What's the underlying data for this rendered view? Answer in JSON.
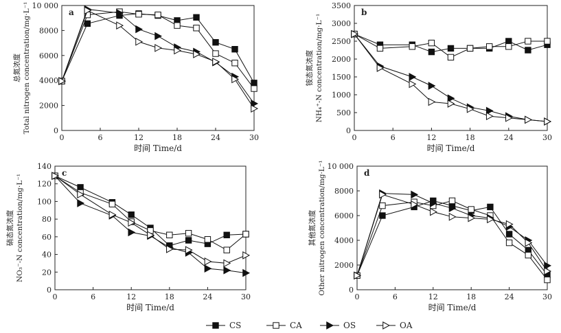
{
  "x_axis_label": "时间 Time/d",
  "legend": [
    {
      "code": "CS",
      "marker": "square-filled"
    },
    {
      "code": "CA",
      "marker": "square-open"
    },
    {
      "code": "OS",
      "marker": "triangle-filled"
    },
    {
      "code": "OA",
      "marker": "triangle-open"
    }
  ],
  "chart_data": [
    {
      "panel": "a",
      "type": "line",
      "ylabel_cn": "总氮浓度",
      "ylabel_en": "Total nitrogen concentration/mg·L⁻¹",
      "xlim": [
        0,
        30
      ],
      "ylim": [
        0,
        10000
      ],
      "xticks": [
        0,
        6,
        12,
        18,
        24,
        30
      ],
      "yticks": [
        0,
        2000,
        4000,
        6000,
        8000,
        10000
      ],
      "ytick_labels": [
        "0",
        "2000",
        "4000",
        "6000",
        "8000",
        "10 000"
      ],
      "x": [
        0,
        4,
        9,
        12,
        15,
        18,
        21,
        24,
        27,
        30
      ],
      "series": [
        {
          "name": "CS",
          "values": [
            3950,
            8550,
            9200,
            9350,
            9200,
            8800,
            9050,
            7050,
            6500,
            3800
          ]
        },
        {
          "name": "CA",
          "values": [
            3950,
            9250,
            9500,
            9300,
            9250,
            8400,
            8200,
            6150,
            5400,
            3350
          ]
        },
        {
          "name": "OS",
          "values": [
            3950,
            9700,
            9400,
            8100,
            7550,
            6650,
            6300,
            5450,
            4300,
            2150
          ]
        },
        {
          "name": "OA",
          "values": [
            3950,
            9600,
            8400,
            7100,
            6600,
            6400,
            6100,
            5500,
            4100,
            1750
          ]
        }
      ]
    },
    {
      "panel": "b",
      "type": "line",
      "ylabel_cn": "铵态氮浓度",
      "ylabel_en": "NH₄⁺-N concentration/mg·L⁻¹",
      "xlim": [
        0,
        30
      ],
      "ylim": [
        0,
        3500
      ],
      "xticks": [
        0,
        6,
        12,
        18,
        24,
        30
      ],
      "yticks": [
        0,
        500,
        1000,
        1500,
        2000,
        2500,
        3000,
        3500
      ],
      "ytick_labels": [
        "0",
        "500",
        "1000",
        "1500",
        "2000",
        "2500",
        "3000",
        "3500"
      ],
      "x": [
        0,
        4,
        9,
        12,
        15,
        18,
        21,
        24,
        27,
        30
      ],
      "series": [
        {
          "name": "CS",
          "values": [
            2700,
            2400,
            2400,
            2200,
            2300,
            2300,
            2300,
            2500,
            2250,
            2400
          ]
        },
        {
          "name": "CA",
          "values": [
            2700,
            2300,
            2350,
            2450,
            2050,
            2300,
            2350,
            2350,
            2500,
            2500
          ]
        },
        {
          "name": "OS",
          "values": [
            2700,
            1800,
            1500,
            1250,
            900,
            650,
            550,
            400,
            300,
            250
          ]
        },
        {
          "name": "OA",
          "values": [
            2700,
            1750,
            1300,
            800,
            750,
            600,
            400,
            350,
            300,
            250
          ]
        }
      ]
    },
    {
      "panel": "c",
      "type": "line",
      "ylabel_cn": "硝态氮浓度",
      "ylabel_en": "NO₃⁻-N concentration/mg·L⁻¹",
      "xlim": [
        0,
        30
      ],
      "ylim": [
        0,
        140
      ],
      "xticks": [
        0,
        6,
        12,
        18,
        24,
        30
      ],
      "yticks": [
        0,
        20,
        40,
        60,
        80,
        100,
        120,
        140
      ],
      "ytick_labels": [
        "0",
        "20",
        "40",
        "60",
        "80",
        "100",
        "120",
        "140"
      ],
      "x": [
        0,
        4,
        9,
        12,
        15,
        18,
        21,
        24,
        27,
        30
      ],
      "series": [
        {
          "name": "CS",
          "values": [
            129,
            116,
            99,
            85,
            70,
            50,
            56,
            52,
            62,
            63
          ]
        },
        {
          "name": "CA",
          "values": [
            129,
            110,
            97,
            77,
            67,
            62,
            64,
            57,
            45,
            63
          ]
        },
        {
          "name": "OS",
          "values": [
            129,
            98,
            84,
            65,
            61,
            48,
            42,
            24,
            22,
            19
          ]
        },
        {
          "name": "OA",
          "values": [
            129,
            108,
            85,
            76,
            62,
            46,
            45,
            32,
            30,
            39
          ]
        }
      ]
    },
    {
      "panel": "d",
      "type": "line",
      "ylabel_cn": "其他氮浓度",
      "ylabel_en": "Other nitrogen concentration/mg·L⁻¹",
      "xlim": [
        0,
        30
      ],
      "ylim": [
        0,
        10000
      ],
      "xticks": [
        0,
        6,
        12,
        18,
        24,
        30
      ],
      "yticks": [
        0,
        2000,
        4000,
        6000,
        8000,
        10000
      ],
      "ytick_labels": [
        "0",
        "2000",
        "4000",
        "6000",
        "8000",
        "10 000"
      ],
      "x": [
        0,
        4,
        9,
        12,
        15,
        18,
        21,
        24,
        27,
        30
      ],
      "series": [
        {
          "name": "CS",
          "values": [
            1150,
            6000,
            6700,
            7200,
            6800,
            6400,
            6700,
            4500,
            3200,
            1200
          ]
        },
        {
          "name": "CA",
          "values": [
            1150,
            6800,
            7100,
            6800,
            7200,
            6500,
            6000,
            3800,
            2800,
            800
          ]
        },
        {
          "name": "OS",
          "values": [
            1150,
            7800,
            7700,
            7000,
            6600,
            6000,
            5800,
            5100,
            4000,
            1950
          ]
        },
        {
          "name": "OA",
          "values": [
            1150,
            7700,
            6900,
            6300,
            5900,
            5800,
            5700,
            5300,
            3800,
            1500
          ]
        }
      ]
    }
  ]
}
